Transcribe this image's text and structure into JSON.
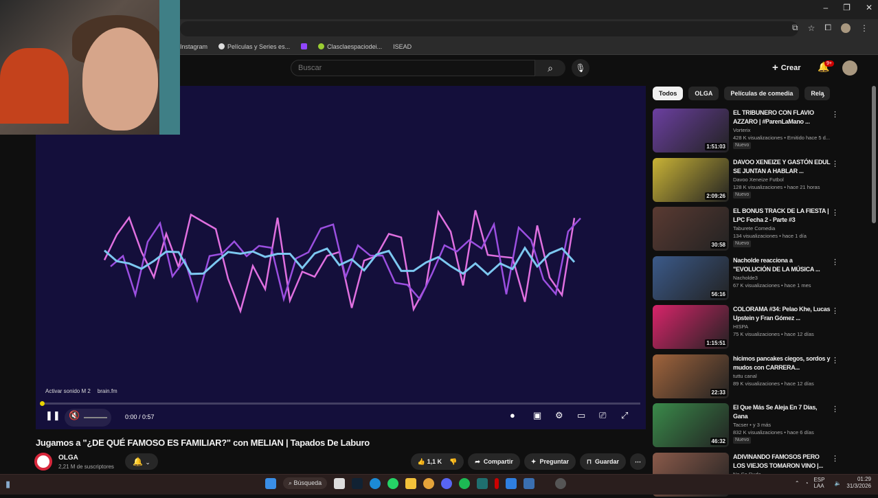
{
  "browser": {
    "window_controls": [
      "–",
      "❐",
      "✕"
    ],
    "bookmarks": [
      "Instagram",
      "Películas y Series es...",
      "",
      "Clasclaespaciodei...",
      "ISEAD"
    ]
  },
  "youtube": {
    "search_placeholder": "Buscar",
    "create_label": "Crear",
    "notification_badge": "9+",
    "player": {
      "overlay_text": "Activar sonido M 2",
      "overlay_site": "brain.fm",
      "time": "0:00 / 0:57",
      "progress_percent": 0.5
    },
    "video_title": "Jugamos a \"¿DE QUÉ FAMOSO ES FAMILIAR?\" con MELIAN | Tapados De Laburo",
    "channel": {
      "name": "OLGA",
      "subscribers": "2,21 M de suscriptores"
    },
    "actions": {
      "likes": "1,1 K",
      "share": "Compartir",
      "ask": "Preguntar",
      "save": "Guardar"
    },
    "chips": [
      "Todos",
      "OLGA",
      "Películas de comedia",
      "Rela"
    ],
    "recommendations": [
      {
        "title": "EL TRIBUNERO CON FLAVIO AZZARO | #ParenLaMano ...",
        "channel": "Vorterix",
        "meta": "428 K visualizaciones • Emitido hace 5 d...",
        "duration": "1:51:03",
        "new": "Nuevo",
        "color": "#6b3fa0"
      },
      {
        "title": "DAVOO XENEIZE Y GASTÓN EDUL SE JUNTAN A HABLAR ...",
        "channel": "Davoo Xeneize Futbol",
        "meta": "128 K visualizaciones • hace 21 horas",
        "duration": "2:09:26",
        "new": "Nuevo",
        "color": "#c9b336"
      },
      {
        "title": "EL BONUS TRACK DE LA FIESTA | LPC Fecha 2 - Parte #3",
        "channel": "Taburete Comedia",
        "meta": "134 visualizaciones • hace 1 día",
        "duration": "30:58",
        "new": "Nuevo",
        "color": "#5a3a32"
      },
      {
        "title": "Nacholde reacciona a \"EVOLUCIÓN DE LA MÚSICA ...",
        "channel": "Nacholde3",
        "meta": "67 K visualizaciones • hace 1 mes",
        "duration": "56:16",
        "new": "",
        "color": "#3b5a8a"
      },
      {
        "title": "COLORAMA #34: Pelao Khe, Lucas Upstein y Fran Gómez ...",
        "channel": "HISPA",
        "meta": "75 K visualizaciones • hace 12 días",
        "duration": "1:15:51",
        "new": "",
        "color": "#d8246a"
      },
      {
        "title": "hicimos pancakes ciegos, sordos y mudos con CARRERA...",
        "channel": "tuttu canal",
        "meta": "89 K visualizaciones • hace 12 días",
        "duration": "22:33",
        "new": "",
        "color": "#a0643c"
      },
      {
        "title": "El Que Más Se Aleja En 7 Días, Gana",
        "channel": "Tacser • y 3 más",
        "meta": "832 K visualizaciones • hace 6 días",
        "duration": "46:32",
        "new": "Nuevo",
        "color": "#3a8a4a"
      },
      {
        "title": "ADIVINANDO FAMOSOS PERO LOS VIEJOS TOMARON VINO |...",
        "channel": "No Se Ruda",
        "meta": "",
        "duration": "",
        "new": "",
        "color": "#8a5a4a"
      }
    ]
  },
  "taskbar": {
    "search": "Búsqueda",
    "lang": "ESP LAA",
    "time": "01:29",
    "date": "31/3/2026"
  }
}
